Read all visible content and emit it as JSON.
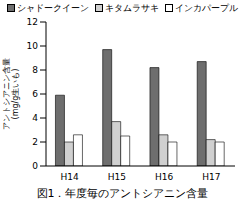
{
  "chart_data": {
    "type": "bar",
    "title": "図1．年度毎のアントシアニン含量",
    "y_label": "アントシアニン含量 (mg/g生いも)",
    "categories": [
      "H14",
      "H15",
      "H16",
      "H17"
    ],
    "series": [
      {
        "name": "シャドークイーン",
        "color": "#6e6e6e",
        "values": [
          5.9,
          9.7,
          8.2,
          8.7
        ]
      },
      {
        "name": "キタムラサキ",
        "color": "#d0d0d0",
        "values": [
          2.0,
          3.7,
          2.6,
          2.2
        ]
      },
      {
        "name": "インカパープル",
        "color": "#ffffff",
        "values": [
          2.6,
          2.5,
          2.0,
          2.0
        ]
      }
    ],
    "ylim": [
      0,
      12
    ],
    "yticks": [
      0,
      2,
      4,
      6,
      8,
      10,
      12
    ],
    "grid": false,
    "legend": "top"
  }
}
